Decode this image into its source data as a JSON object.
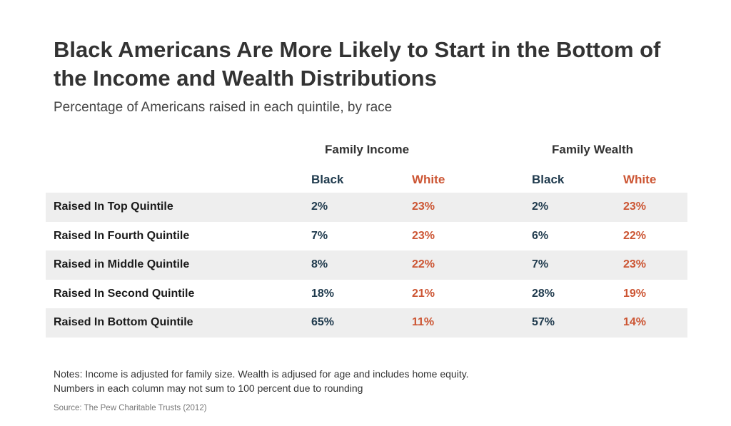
{
  "chart_data": {
    "type": "table",
    "title": "Black Americans Are More Likely to Start in the Bottom of the Income and Wealth Distributions",
    "subtitle": "Percentage of Americans raised in each quintile, by race",
    "groups": [
      "Family Income",
      "Family Wealth"
    ],
    "columns": [
      "Black",
      "White",
      "Black",
      "White"
    ],
    "rows": [
      {
        "label": "Raised In Top Quintile",
        "values": [
          "2%",
          "23%",
          "2%",
          "23%"
        ]
      },
      {
        "label": "Raised In Fourth Quintile",
        "values": [
          "7%",
          "23%",
          "6%",
          "22%"
        ]
      },
      {
        "label": "Raised in Middle Quintile",
        "values": [
          "8%",
          "22%",
          "7%",
          "23%"
        ]
      },
      {
        "label": "Raised In Second Quintile",
        "values": [
          "18%",
          "21%",
          "28%",
          "19%"
        ]
      },
      {
        "label": "Raised In Bottom Quintile",
        "values": [
          "65%",
          "11%",
          "57%",
          "14%"
        ]
      }
    ],
    "notes": [
      "Notes: Income is adjusted for family size. Wealth is adjused for age and includes home equity.",
      "Numbers in each column may not sum to 100 percent due to rounding"
    ],
    "source": "Source: The Pew Charitable Trusts (2012)"
  },
  "colors": {
    "black_series": "#1f3a4d",
    "white_series": "#cc5533",
    "row_shade": "#eeeeee",
    "title": "#333333"
  }
}
